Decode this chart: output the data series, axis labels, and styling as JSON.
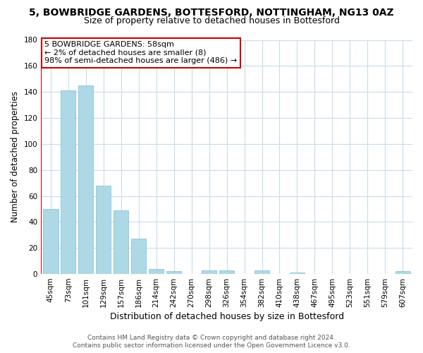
{
  "title": "5, BOWBRIDGE GARDENS, BOTTESFORD, NOTTINGHAM, NG13 0AZ",
  "subtitle": "Size of property relative to detached houses in Bottesford",
  "xlabel": "Distribution of detached houses by size in Bottesford",
  "ylabel": "Number of detached properties",
  "bin_labels": [
    "45sqm",
    "73sqm",
    "101sqm",
    "129sqm",
    "157sqm",
    "186sqm",
    "214sqm",
    "242sqm",
    "270sqm",
    "298sqm",
    "326sqm",
    "354sqm",
    "382sqm",
    "410sqm",
    "438sqm",
    "467sqm",
    "495sqm",
    "523sqm",
    "551sqm",
    "579sqm",
    "607sqm"
  ],
  "bar_heights": [
    50,
    141,
    145,
    68,
    49,
    27,
    4,
    2,
    0,
    3,
    3,
    0,
    3,
    0,
    1,
    0,
    0,
    0,
    0,
    0,
    2
  ],
  "bar_color": "#add8e6",
  "bar_edge_color": "#7bbdd4",
  "annotation_title": "5 BOWBRIDGE GARDENS: 58sqm",
  "annotation_line1": "← 2% of detached houses are smaller (8)",
  "annotation_line2": "98% of semi-detached houses are larger (486) →",
  "annotation_box_color": "#ffffff",
  "annotation_box_edge": "#cc0000",
  "red_line_color": "#cc0000",
  "ylim": [
    0,
    180
  ],
  "yticks": [
    0,
    20,
    40,
    60,
    80,
    100,
    120,
    140,
    160,
    180
  ],
  "footer1": "Contains HM Land Registry data © Crown copyright and database right 2024.",
  "footer2": "Contains public sector information licensed under the Open Government Licence v3.0.",
  "bg_color": "#ffffff",
  "grid_color": "#c8dce8",
  "title_fontsize": 10,
  "subtitle_fontsize": 9,
  "axis_label_fontsize": 9,
  "ylabel_fontsize": 8.5,
  "tick_fontsize": 7.5,
  "annotation_fontsize": 8,
  "footer_fontsize": 6.5
}
